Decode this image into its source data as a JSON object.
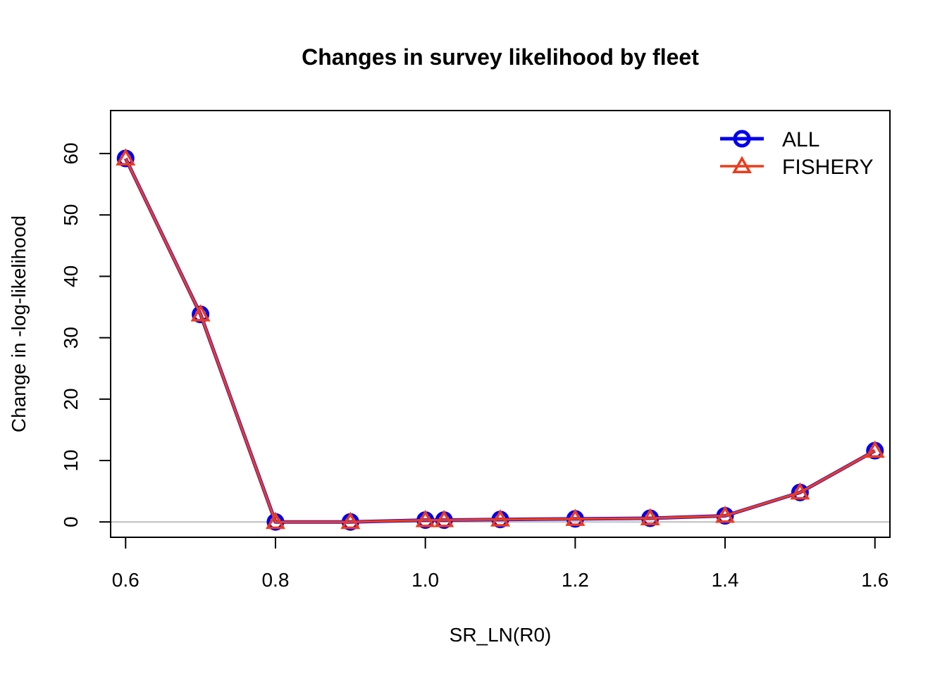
{
  "chart_data": {
    "type": "line",
    "title": "Changes in survey likelihood by fleet",
    "xlabel": "SR_LN(R0)",
    "ylabel": "Change in -log-likelihood",
    "xlim": [
      0.58,
      1.62
    ],
    "ylim": [
      -2.5,
      67
    ],
    "x_ticks": [
      "0.6",
      "0.8",
      "1.0",
      "1.2",
      "1.4",
      "1.6"
    ],
    "y_ticks": [
      "0",
      "10",
      "20",
      "30",
      "40",
      "50",
      "60"
    ],
    "reference_line_y": 0,
    "legend_position": "top-right",
    "x": [
      0.6,
      0.7,
      0.8,
      0.9,
      1.0,
      1.025,
      1.1,
      1.2,
      1.3,
      1.4,
      1.5,
      1.6
    ],
    "series": [
      {
        "name": "ALL",
        "color": "#0000ee",
        "marker": "circle",
        "values": [
          59.2,
          33.8,
          0.0,
          0.0,
          0.3,
          0.3,
          0.4,
          0.5,
          0.6,
          1.0,
          4.8,
          11.6
        ]
      },
      {
        "name": "FISHERY",
        "color": "#ee3b1a",
        "marker": "triangle",
        "values": [
          59.2,
          33.8,
          0.0,
          0.0,
          0.3,
          0.3,
          0.4,
          0.5,
          0.6,
          1.0,
          4.8,
          11.6
        ]
      }
    ]
  }
}
